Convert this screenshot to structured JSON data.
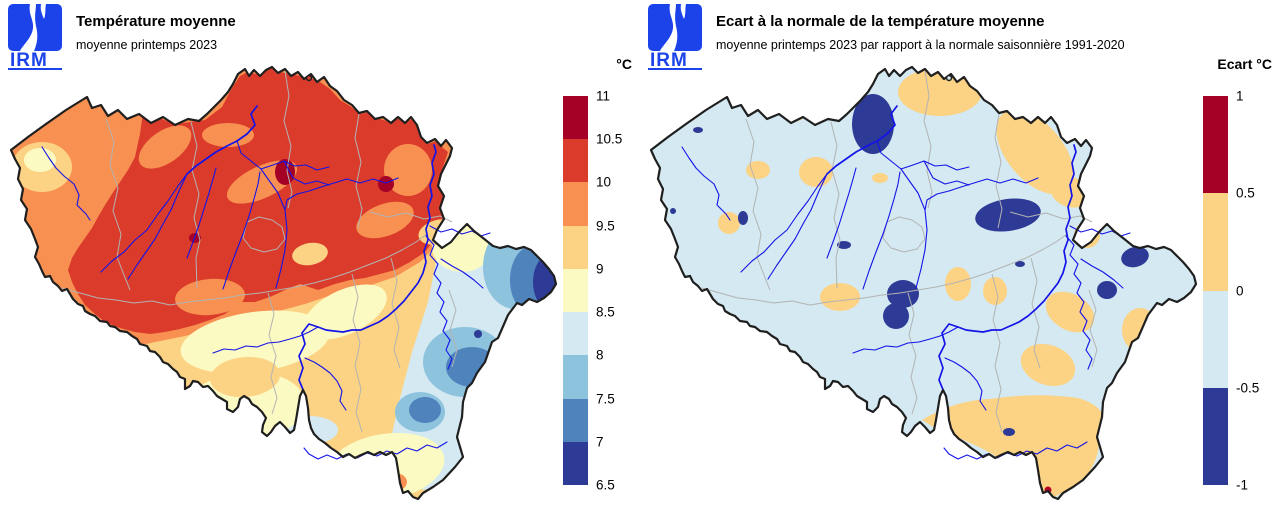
{
  "palette": {
    "t1": "#a50026",
    "t2": "#da3b2b",
    "t3": "#f89051",
    "t4": "#fcd384",
    "t5": "#fbfac2",
    "t6": "#d4e9f1",
    "t7": "#8ec3de",
    "t8": "#4e83bc",
    "t9": "#2d3a96",
    "river": "#1414e8",
    "province": "#b3b3b3",
    "outline": "#1f1f1f",
    "logo_blue": "#1c43ea",
    "anomaly_red_dot": "#b40426"
  },
  "panels": [
    {
      "logo_text": "IRM",
      "title": "Température moyenne",
      "subtitle": "moyenne printemps 2023",
      "legend": {
        "title": "°C",
        "ticks": [
          "11",
          "10.5",
          "10",
          "9.5",
          "9",
          "8.5",
          "8",
          "7.5",
          "7",
          "6.5"
        ],
        "cell_colors": [
          "#a50026",
          "#da3b2b",
          "#f89051",
          "#fcd384",
          "#fbfac2",
          "#d4e9f1",
          "#8ec3de",
          "#4e83bc",
          "#2d3a96"
        ]
      }
    },
    {
      "logo_text": "IRM",
      "title": "Ecart à la normale de la température moyenne",
      "subtitle": "moyenne printemps 2023 par rapport à la normale saisonnière 1991-2020",
      "legend": {
        "title": "Ecart °C",
        "ticks": [
          "1",
          "0.5",
          "0",
          "-0.5",
          "-1"
        ],
        "cell_colors": [
          "#a50026",
          "#fcd384",
          "#d4e9f1",
          "#2d3a96"
        ]
      }
    }
  ],
  "chart_data": [
    {
      "type": "heatmap",
      "subtype": "filled-contour temperature map of Belgium",
      "title": "Température moyenne",
      "period": "printemps 2023",
      "unit": "°C",
      "scale_ticks": [
        11,
        10.5,
        10,
        9.5,
        9,
        8.5,
        8,
        7.5,
        7,
        6.5
      ],
      "scale_colors": [
        "#a50026",
        "#da3b2b",
        "#f89051",
        "#fcd384",
        "#fbfac2",
        "#d4e9f1",
        "#8ec3de",
        "#4e83bc",
        "#2d3a96"
      ],
      "reading": "Nord et centre 10 à 10.5 °C avec noyaux > 10.5 °C (région d'Anvers, Limbourg); littoral et ouest 9 à 10 °C; centre-sud 8.5 à 9.5 °C; Ardenne 7 à 8.5 °C; Hautes Fagnes et cantons de l'Est 6.5 à 7 °C; pointe sud 8.5 à 9.5 °C"
    },
    {
      "type": "heatmap",
      "subtype": "filled-contour anomaly map of Belgium",
      "title": "Ecart à la normale de la température moyenne",
      "period": "printemps 2023 vs normale saisonnière 1991-2020",
      "unit": "°C",
      "scale_ticks": [
        1,
        0.5,
        0,
        -0.5,
        -1
      ],
      "scale_colors": [
        "#a50026",
        "#fcd384",
        "#d4e9f1",
        "#2d3a96"
      ],
      "reading": "Majorité du pays entre -0.5 et 0 °C; poches entre 0 et +0.5 °C au nord (Campine) et dans le sud (Gaume, sud Ardenne); noyaux entre -1 et -0.5 °C (région d'Anvers, Hesbaye, Entre-Sambre-et-Meuse, est du pays); point isolé +0.5 à 1 °C à l'extrême sud"
    }
  ]
}
